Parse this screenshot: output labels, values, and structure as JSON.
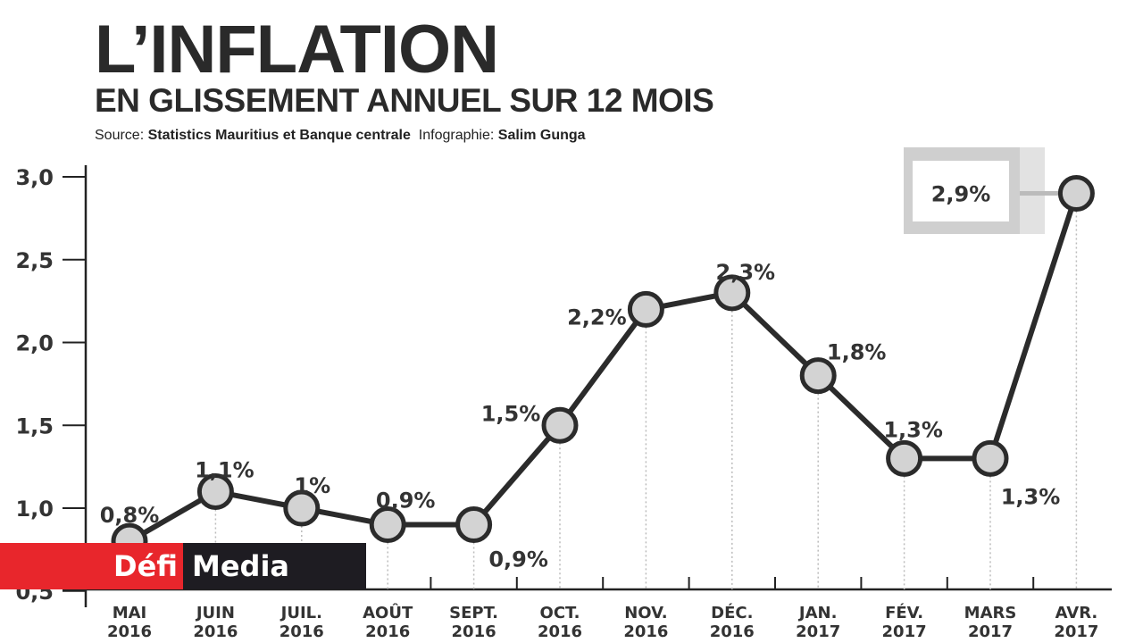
{
  "header": {
    "title": "L’INFLATION",
    "subtitle": "EN GLISSEMENT ANNUEL SUR 12 MOIS",
    "source_label": "Source:",
    "source_value": "Statistics Mauritius et Banque centrale",
    "credit_label": "Infographie:",
    "credit_value": "Salim Gunga"
  },
  "logo": {
    "part1": "Défi",
    "part2": "Media",
    "red": "#e8262c",
    "dark": "#1e1c22"
  },
  "chart_data": {
    "type": "line",
    "categories": [
      [
        "MAI",
        "2016"
      ],
      [
        "JUIN",
        "2016"
      ],
      [
        "JUIL.",
        "2016"
      ],
      [
        "AOÛT",
        "2016"
      ],
      [
        "SEPT.",
        "2016"
      ],
      [
        "OCT.",
        "2016"
      ],
      [
        "NOV.",
        "2016"
      ],
      [
        "DÉC.",
        "2016"
      ],
      [
        "JAN.",
        "2017"
      ],
      [
        "FÉV.",
        "2017"
      ],
      [
        "MARS",
        "2017"
      ],
      [
        "AVR.",
        "2017"
      ]
    ],
    "values": [
      0.8,
      1.1,
      1.0,
      0.9,
      0.9,
      1.5,
      2.2,
      2.3,
      1.8,
      1.3,
      1.3,
      2.9
    ],
    "data_labels": [
      "0,8%",
      "1,1%",
      "1%",
      "0,9%",
      "0,9%",
      "1,5%",
      "2,2%",
      "2,3%",
      "1,8%",
      "1,3%",
      "1,3%",
      "2,9%"
    ],
    "y_ticks": [
      "0,5",
      "1,0",
      "1,5",
      "2,0",
      "2,5",
      "3,0"
    ],
    "y_tick_values": [
      0.5,
      1.0,
      1.5,
      2.0,
      2.5,
      3.0
    ],
    "ylim": [
      0.5,
      3.0
    ],
    "grid": false,
    "highlight": "2,9%",
    "colors": {
      "line": "#2b2b2b",
      "marker": "#d3d3d3",
      "callout": "#cfcfcf"
    }
  }
}
